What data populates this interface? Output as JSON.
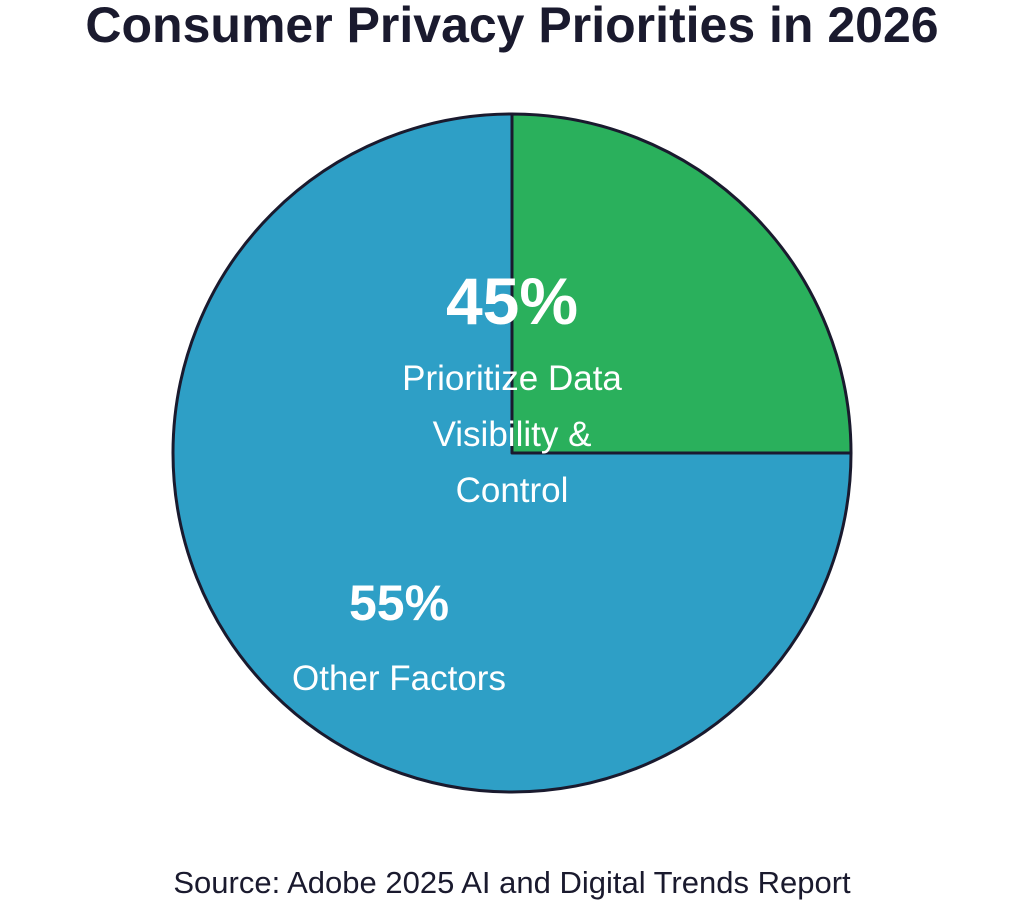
{
  "chart_data": {
    "type": "pie",
    "title": "Consumer Privacy Priorities in 2026",
    "source": "Source: Adobe 2025 AI and Digital Trends Report",
    "slices": [
      {
        "value": 45,
        "percent_label": "45%",
        "label_lines": [
          "Prioritize Data",
          "Visibility &",
          "Control"
        ],
        "color": "#2ab05c"
      },
      {
        "value": 55,
        "percent_label": "55%",
        "label_lines": [
          "Other Factors"
        ],
        "color": "#2e9fc6"
      }
    ],
    "outline_color": "#1a1a2e"
  }
}
